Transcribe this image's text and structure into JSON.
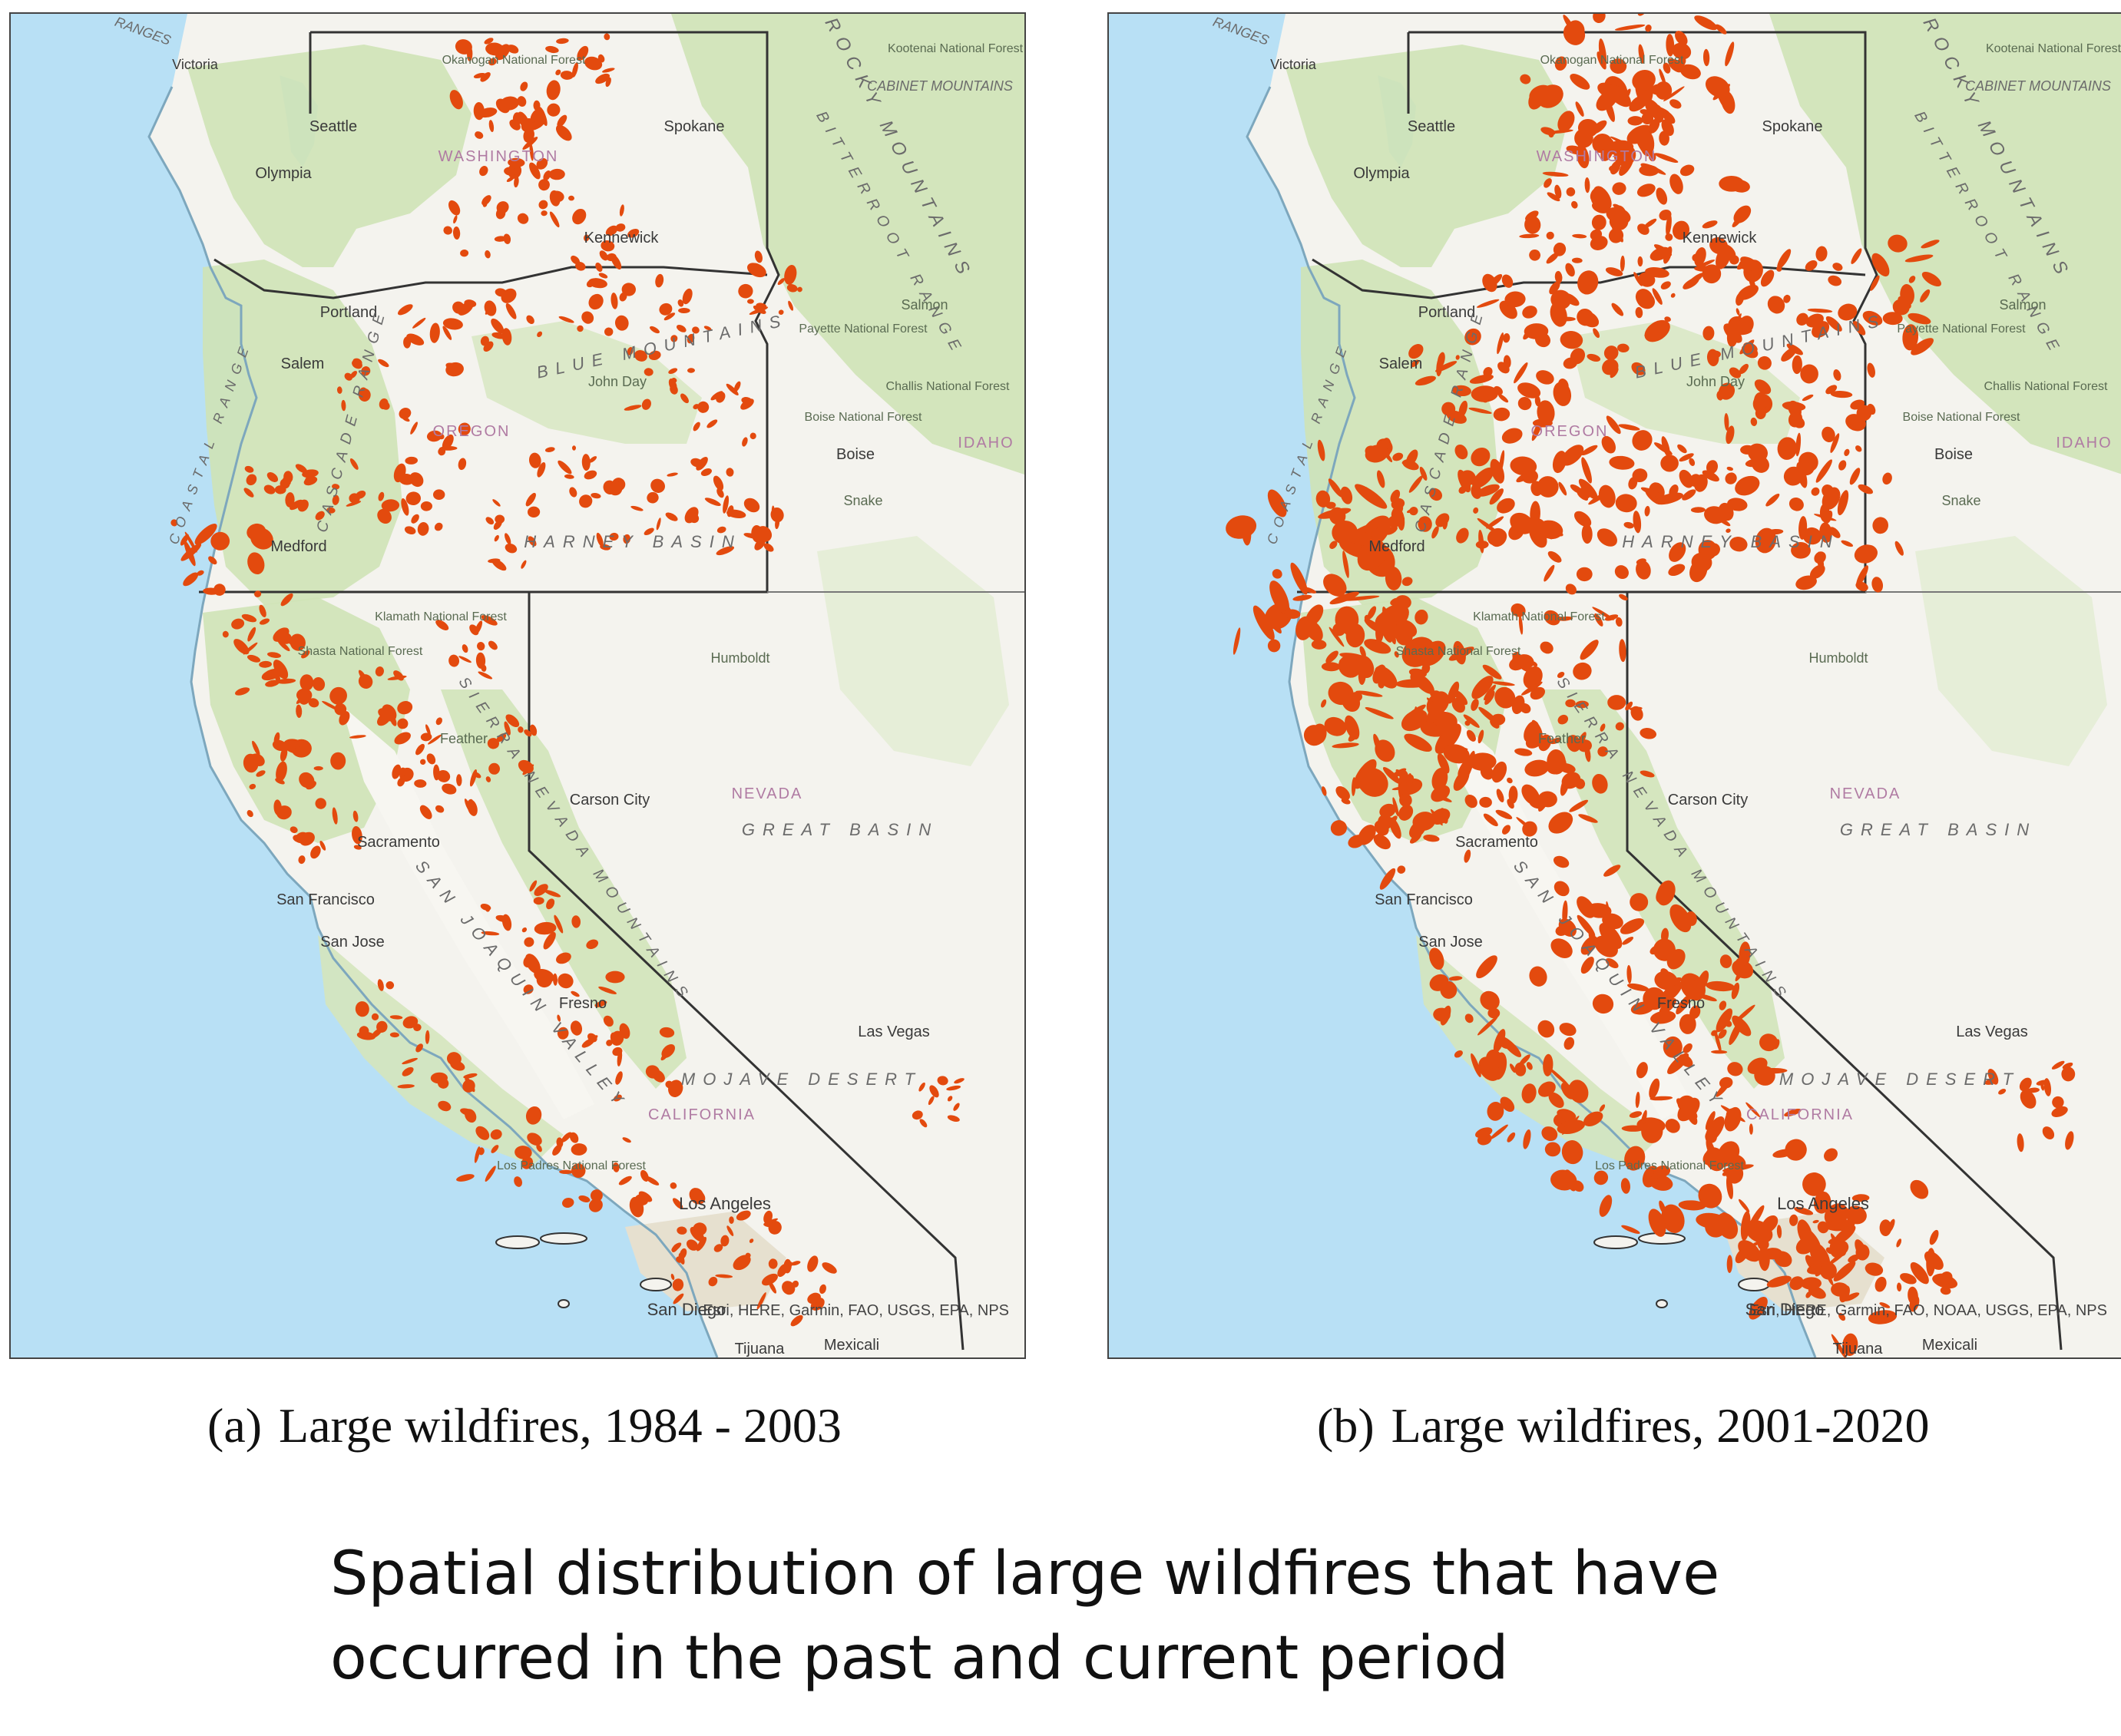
{
  "panels": [
    {
      "id": "a",
      "caption_label": "(a)",
      "caption_text": "Large wildfires, 1984 - 2003",
      "attribution": "Esri, HERE, Garmin, FAO, USGS, EPA, NPS",
      "fire_extent": 0.45
    },
    {
      "id": "b",
      "caption_label": "(b)",
      "caption_text": "Large wildfires, 2001-2020",
      "attribution": "Esri, HERE, Garmin, FAO, NOAA, USGS, EPA, NPS",
      "fire_extent": 1.0
    }
  ],
  "map_labels": {
    "cities": [
      "Victoria",
      "Seattle",
      "Olympia",
      "Spokane",
      "Kennewick",
      "Portland",
      "Salem",
      "Medford",
      "Boise",
      "Carson City",
      "Sacramento",
      "San Francisco",
      "San Jose",
      "Fresno",
      "Las Vegas",
      "Los Angeles",
      "San Diego",
      "Tijuana",
      "Mexicali"
    ],
    "states": [
      "WASHINGTON",
      "OREGON",
      "IDAHO",
      "NEVADA",
      "CALIFORNIA"
    ],
    "regions": [
      "RANGES",
      "COASTAL RANGE",
      "CASCADE RANGE",
      "BLUE MOUNTAINS",
      "HARNEY BASIN",
      "GREAT BASIN",
      "MOJAVE DESERT",
      "SAN JOAQUIN VALLEY",
      "SIERRA NEVADA MOUNTAINS",
      "ROCKY MOUNTAINS",
      "BITTERROOT RANGE",
      "CABINET MOUNTAINS"
    ],
    "features": [
      "Kootenai National Forest",
      "Okanogan National Forest",
      "Payette National Forest",
      "Challis National Forest",
      "Boise National Forest",
      "Shasta National Forest",
      "Klamath National Forest",
      "Los Padres National Forest",
      "Humboldt",
      "Snake",
      "Salmon",
      "John Day",
      "Feather"
    ]
  },
  "colors": {
    "ocean": "#b8e0f5",
    "land_light": "#f4f3ee",
    "forest": "#cfe3b6",
    "fire": "#e34a0e",
    "border": "#333333",
    "label": "#4d4d4d",
    "state_label": "#b07ba3"
  },
  "figure_note": "Spatial distribution of large wildfires that have occurred in the past and current period"
}
